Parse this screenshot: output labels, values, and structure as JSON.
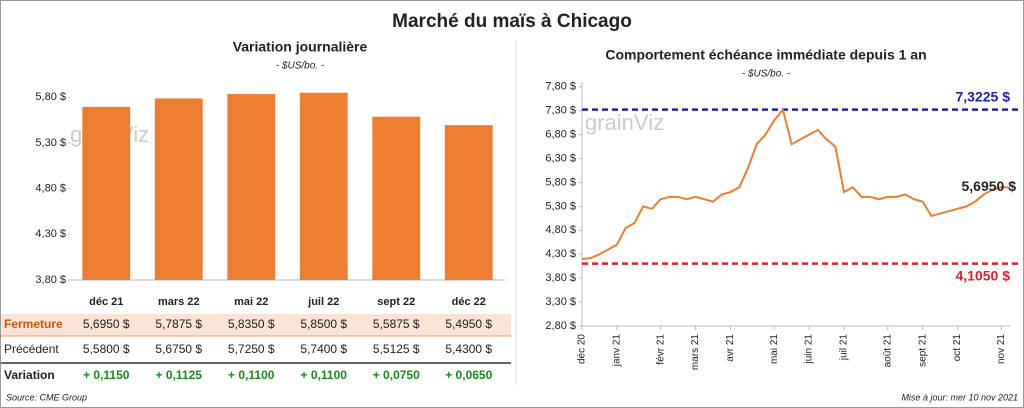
{
  "title": "Marché du maïs à Chicago",
  "source": "Source: CME Group",
  "updated": "Mise à jour: mer 10 nov 2021",
  "watermark": "grainViz",
  "chart_data": [
    {
      "type": "bar",
      "title": "Variation journalière",
      "subtitle": "- $US/bo. -",
      "categories": [
        "déc 21",
        "mars 22",
        "mai 22",
        "juil 22",
        "sept 22",
        "déc 22"
      ],
      "values": [
        5.695,
        5.7875,
        5.835,
        5.85,
        5.5875,
        5.495
      ],
      "value_labels": [
        "5,6950  $",
        "5,7875  $",
        "5,8350  $",
        "5,8500  $",
        "5,5875  $",
        "5,4950  $"
      ],
      "color": "#ed7d31",
      "ylim": [
        3.8,
        6.0
      ],
      "yticks": [
        {
          "value": 3.8,
          "label": "3,80 $"
        },
        {
          "value": 4.3,
          "label": "4,30 $"
        },
        {
          "value": 4.8,
          "label": "4,80 $"
        },
        {
          "value": 5.3,
          "label": "5,30 $"
        },
        {
          "value": 5.8,
          "label": "5,80 $"
        }
      ]
    },
    {
      "type": "line",
      "title": "Comportement  échéance immédiate depuis 1 an",
      "subtitle": "- $US/bo. -",
      "categories": [
        "déc 20",
        null,
        null,
        null,
        "janv 21",
        null,
        null,
        null,
        null,
        "févr 21",
        null,
        null,
        null,
        "mars 21",
        null,
        null,
        null,
        "avr 21",
        null,
        null,
        null,
        null,
        "mai 21",
        null,
        null,
        null,
        "juin 21",
        null,
        null,
        null,
        "juil 21",
        null,
        null,
        null,
        null,
        "août 21",
        null,
        null,
        null,
        "sept 21",
        null,
        null,
        null,
        "oct 21",
        null,
        null,
        null,
        null,
        "nov 21",
        null
      ],
      "values": [
        4.2,
        4.22,
        4.3,
        4.4,
        4.5,
        4.85,
        4.95,
        5.3,
        5.25,
        5.45,
        5.5,
        5.5,
        5.45,
        5.5,
        5.45,
        5.4,
        5.55,
        5.6,
        5.7,
        6.1,
        6.6,
        6.8,
        7.1,
        7.32,
        6.6,
        6.7,
        6.8,
        6.9,
        6.7,
        6.55,
        5.6,
        5.7,
        5.5,
        5.5,
        5.45,
        5.5,
        5.5,
        5.55,
        5.45,
        5.4,
        5.1,
        5.15,
        5.2,
        5.25,
        5.3,
        5.4,
        5.55,
        5.65,
        5.7,
        5.695
      ],
      "color": "#ed7d31",
      "ylim": [
        2.8,
        7.9
      ],
      "yticks": [
        {
          "value": 2.8,
          "label": "2,80 $"
        },
        {
          "value": 3.3,
          "label": "3,30 $"
        },
        {
          "value": 3.8,
          "label": "3,80 $"
        },
        {
          "value": 4.3,
          "label": "4,30 $"
        },
        {
          "value": 4.8,
          "label": "4,80 $"
        },
        {
          "value": 5.3,
          "label": "5,30 $"
        },
        {
          "value": 5.8,
          "label": "5,80 $"
        },
        {
          "value": 6.3,
          "label": "6,30 $"
        },
        {
          "value": 6.8,
          "label": "6,80 $"
        },
        {
          "value": 7.3,
          "label": "7,30 $"
        },
        {
          "value": 7.8,
          "label": "7,80 $"
        }
      ],
      "reference_lines": [
        {
          "value": 7.3225,
          "label": "7,3225 $",
          "color": "#2222a8"
        },
        {
          "value": 4.105,
          "label": "4,1050 $",
          "color": "#e0202a"
        }
      ],
      "end_label": {
        "value": 5.695,
        "label": "5,6950 $"
      }
    }
  ],
  "table": {
    "closing_label": "Fermeture",
    "rows": [
      {
        "label": "Précédent",
        "cells": [
          "5,5800  $",
          "5,6750  $",
          "5,7250  $",
          "5,7400  $",
          "5,5125  $",
          "5,4300  $"
        ]
      },
      {
        "label": "Variation",
        "cells": [
          "+ 0,1150",
          "+ 0,1125",
          "+ 0,1100",
          "+ 0,1100",
          "+ 0,0750",
          "+ 0,0650"
        ]
      }
    ]
  }
}
